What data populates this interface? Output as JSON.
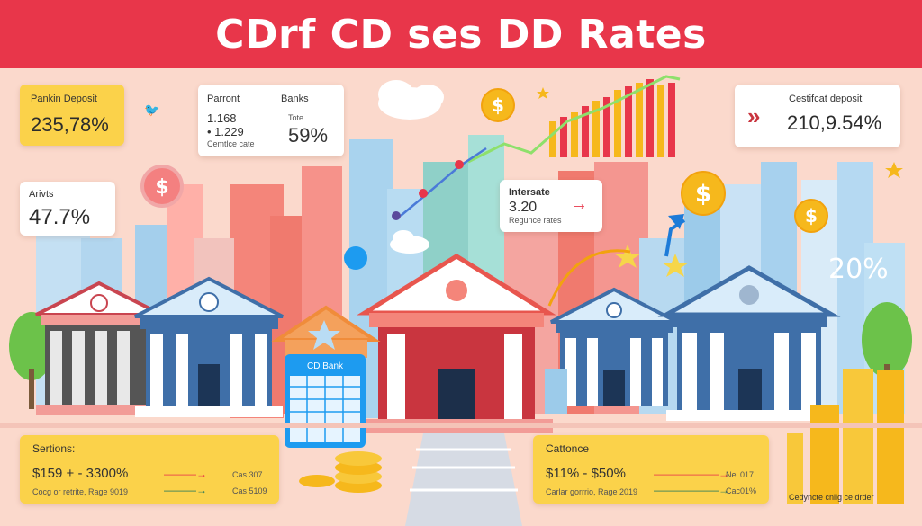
{
  "banner": {
    "title": "CDrf CD ses DD Rates"
  },
  "colors": {
    "banner": "#e8364a",
    "card_yellow": "#fbd24a",
    "background": "#fbd9cc",
    "coin": "#f6b81c",
    "bank_blue": "#3f6fa8",
    "bank_red": "#c9353f"
  },
  "icons": {
    "coin": "dollar-coin-icon",
    "star": "star-icon",
    "bird": "twitter-bird-icon",
    "arrow": "arrow-right-icon",
    "chevron": "double-chevron-icon"
  },
  "cards": {
    "pankin": {
      "label": "Pankin Deposit",
      "value": "235,78%"
    },
    "parront": {
      "col1_label": "Parront",
      "col1_line1": "1.168",
      "col1_line2": "• 1.229",
      "col1_line3": "Cemtlce cate",
      "col2_label": "Banks",
      "col2_small": "Tote",
      "col2_value": "59%"
    },
    "certificat": {
      "label": "Cestifcat deposit",
      "value": "210,9.54%"
    },
    "arivts": {
      "label": "Arivts",
      "value": "47.7%"
    },
    "intersate": {
      "label": "Intersate",
      "value": "3.20",
      "small": "Regunce rates"
    }
  },
  "overlay_value": "20%",
  "cd_bank": {
    "label": "CD Bank"
  },
  "panels": {
    "left": {
      "title": "Sertions:",
      "value": "$159 + - 3300%",
      "note": "Cocg or retrite, Rage 9019",
      "tag1": "Cas 307",
      "tag2": "Cas 5109"
    },
    "right": {
      "title": "Cattonce",
      "value": "$11% - $50%",
      "note": "Carlar gorrrio, Rage 2019",
      "tag1": "Nel 017",
      "tag2": "Cac01%"
    }
  },
  "footer_note": "Cedyncte cnlig ce drder"
}
